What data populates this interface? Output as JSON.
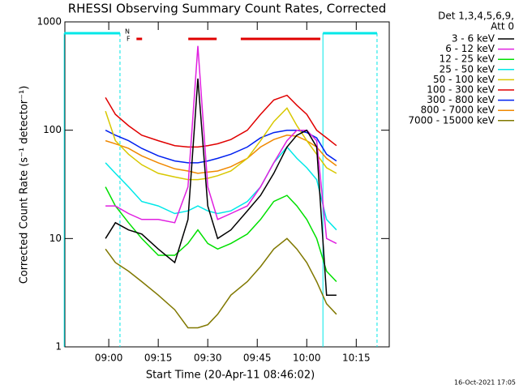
{
  "chart_data": {
    "type": "line",
    "title": "RHESSI Observing Summary Count Rates, Corrected",
    "x_label": "Start Time (20-Apr-11 08:46:02)",
    "y_label": "Corrected Count Rate (s⁻¹ detector⁻¹)",
    "legend_header": [
      "Det 1,3,4,5,6,9,",
      "Att 0"
    ],
    "timestamp": "16-Oct-2021 17:05",
    "log_scale": "y",
    "legend_position": "outside-right",
    "xlim": [
      526.7,
      625
    ],
    "xticks": [
      {
        "value": 540,
        "label": "09:00"
      },
      {
        "value": 555,
        "label": "09:15"
      },
      {
        "value": 570,
        "label": "09:30"
      },
      {
        "value": 585,
        "label": "09:45"
      },
      {
        "value": 600,
        "label": "10:00"
      },
      {
        "value": 615,
        "label": "10:15"
      }
    ],
    "ylim": [
      1,
      1000
    ],
    "yticks": [
      1,
      10,
      100,
      1000
    ],
    "x": [
      539,
      542,
      546,
      550,
      555,
      560,
      564,
      567,
      570,
      573,
      577,
      582,
      586,
      590,
      594,
      597,
      600,
      603,
      606,
      609
    ],
    "series": [
      {
        "name": "3 - 6 keV",
        "color": "#000000",
        "values": [
          10,
          14,
          12,
          11,
          8,
          6,
          15,
          300,
          20,
          10,
          12,
          18,
          25,
          40,
          70,
          90,
          100,
          70,
          3,
          3
        ]
      },
      {
        "name": "6 - 12 keV",
        "color": "#e020e0",
        "values": [
          20,
          20,
          17,
          15,
          15,
          14,
          30,
          600,
          30,
          15,
          17,
          20,
          30,
          50,
          80,
          100,
          100,
          80,
          10,
          9
        ]
      },
      {
        "name": "12 - 25 keV",
        "color": "#00e000",
        "values": [
          30,
          20,
          14,
          10,
          7,
          7,
          9,
          12,
          9,
          8,
          9,
          11,
          15,
          22,
          25,
          20,
          15,
          10,
          5,
          4
        ]
      },
      {
        "name": "25 - 50 keV",
        "color": "#00e8e8",
        "values": [
          50,
          40,
          30,
          22,
          20,
          17,
          18,
          20,
          18,
          17,
          18,
          22,
          30,
          50,
          70,
          55,
          45,
          35,
          15,
          12
        ]
      },
      {
        "name": "50 - 100 keV",
        "color": "#d8c800",
        "values": [
          150,
          80,
          60,
          48,
          40,
          37,
          35,
          35,
          36,
          38,
          42,
          55,
          80,
          120,
          160,
          110,
          80,
          60,
          45,
          40
        ]
      },
      {
        "name": "100 - 300 keV",
        "color": "#e00000",
        "values": [
          200,
          140,
          110,
          90,
          80,
          72,
          70,
          70,
          72,
          75,
          82,
          100,
          140,
          190,
          210,
          170,
          140,
          100,
          85,
          72
        ]
      },
      {
        "name": "300 - 800 keV",
        "color": "#0020f0",
        "values": [
          100,
          90,
          80,
          68,
          58,
          52,
          50,
          50,
          52,
          55,
          60,
          70,
          85,
          95,
          100,
          100,
          95,
          85,
          60,
          52
        ]
      },
      {
        "name": "800 - 7000 keV",
        "color": "#f08800",
        "values": [
          80,
          75,
          68,
          58,
          50,
          44,
          42,
          40,
          41,
          42,
          46,
          55,
          70,
          82,
          90,
          88,
          80,
          70,
          55,
          47
        ]
      },
      {
        "name": "7000 - 15000 keV",
        "color": "#807800",
        "values": [
          8,
          6,
          5,
          4,
          3,
          2.2,
          1.5,
          1.5,
          1.6,
          2,
          3,
          4,
          5.5,
          8,
          10,
          8,
          6,
          4,
          2.5,
          2
        ]
      }
    ],
    "night_label": "N",
    "night_color": "#00e8e8",
    "night_periods": [
      [
        526.5,
        543.4
      ],
      [
        604.9,
        621.3
      ]
    ],
    "flare_label": "F",
    "flare_color": "#e00000",
    "flare_periods": [
      [
        548.4,
        550.1
      ],
      [
        564.1,
        572.7
      ],
      [
        580,
        604.1
      ]
    ]
  }
}
